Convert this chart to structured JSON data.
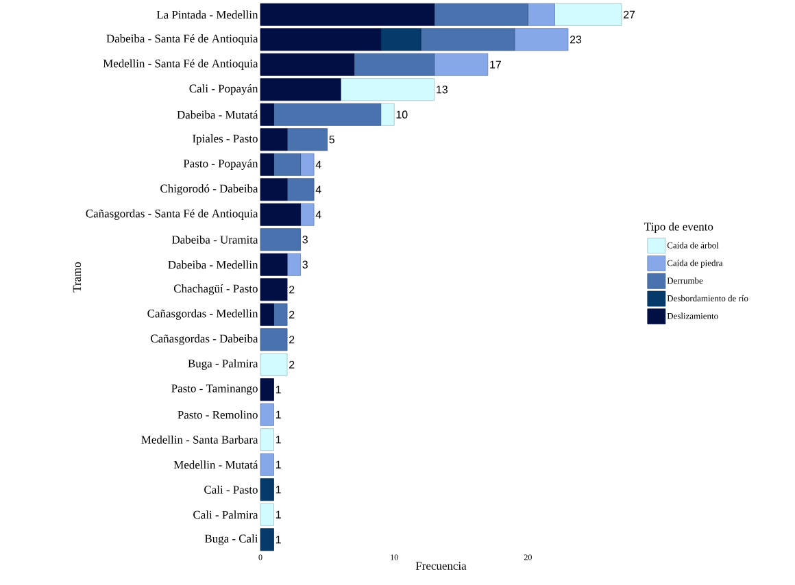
{
  "chart_data": {
    "type": "bar",
    "orientation": "horizontal",
    "stacked": true,
    "xlabel": "Frecuencia",
    "ylabel": "Tramo",
    "legend_title": "Tipo de evento",
    "legend": "right",
    "xlim": [
      0,
      27
    ],
    "xticks": [
      0,
      10,
      20
    ],
    "categories": [
      "La Pintada - Medellin",
      "Dabeiba - Santa Fé de Antioquia",
      "Medellin - Santa Fé de Antioquia",
      "Cali - Popayán",
      "Dabeiba - Mutatá",
      "Ipiales - Pasto",
      "Pasto - Popayán",
      "Chigorodó - Dabeiba",
      "Cañasgordas - Santa Fé de Antioquia",
      "Dabeiba - Uramita",
      "Dabeiba - Medellin",
      "Chachagüí - Pasto",
      "Cañasgordas - Medellin",
      "Cañasgordas - Dabeiba",
      "Buga - Palmira",
      "Pasto - Taminango",
      "Pasto - Remolino",
      "Medellin - Santa Barbara",
      "Medellin - Mutatá",
      "Cali - Pasto",
      "Cali - Palmira",
      "Buga - Cali"
    ],
    "series": [
      {
        "name": "Deslizamiento",
        "color": "#010f45",
        "values": [
          13,
          9,
          7,
          6,
          1,
          2,
          1,
          2,
          3,
          0,
          2,
          2,
          1,
          0,
          0,
          1,
          0,
          0,
          0,
          0,
          0,
          0
        ]
      },
      {
        "name": "Desbordamiento de río",
        "color": "#053a6b",
        "values": [
          0,
          3,
          0,
          0,
          0,
          0,
          0,
          0,
          0,
          0,
          0,
          0,
          0,
          0,
          0,
          0,
          0,
          0,
          0,
          1,
          0,
          1
        ]
      },
      {
        "name": "Derrumbe",
        "color": "#4a72ae",
        "values": [
          7,
          7,
          6,
          0,
          8,
          3,
          2,
          2,
          0,
          3,
          0,
          0,
          1,
          2,
          0,
          0,
          0,
          0,
          0,
          0,
          0,
          0
        ]
      },
      {
        "name": "Caída de piedra",
        "color": "#86a8e8",
        "values": [
          2,
          4,
          4,
          0,
          0,
          0,
          1,
          0,
          1,
          0,
          1,
          0,
          0,
          0,
          0,
          0,
          1,
          0,
          1,
          0,
          0,
          0
        ]
      },
      {
        "name": "Caída de árbol",
        "color": "#d2fbff",
        "values": [
          5,
          0,
          0,
          7,
          1,
          0,
          0,
          0,
          0,
          0,
          0,
          0,
          0,
          0,
          2,
          0,
          0,
          1,
          0,
          0,
          1,
          0
        ]
      }
    ],
    "totals": [
      "27",
      "23",
      "17",
      "13",
      "10",
      "5",
      "4",
      "4",
      "4",
      "3",
      "3",
      "2",
      "2",
      "2",
      "2",
      "1",
      "1",
      "1",
      "1",
      "1",
      "1",
      "1"
    ]
  }
}
